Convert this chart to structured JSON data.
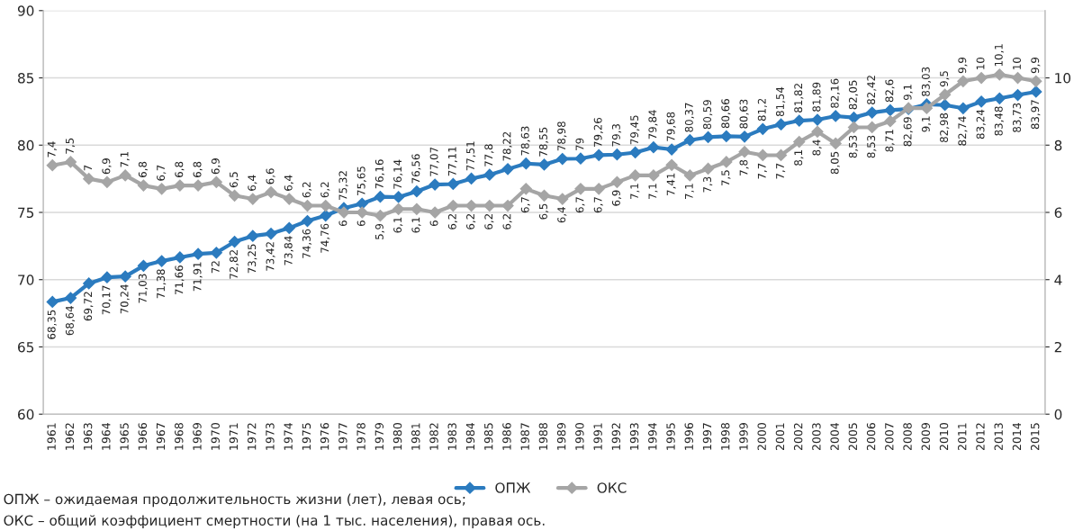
{
  "chart_data": {
    "type": "line",
    "categories": [
      "1961",
      "1962",
      "1963",
      "1964",
      "1965",
      "1966",
      "1967",
      "1968",
      "1969",
      "1970",
      "1971",
      "1972",
      "1973",
      "1974",
      "1975",
      "1976",
      "1977",
      "1978",
      "1979",
      "1980",
      "1981",
      "1982",
      "1983",
      "1984",
      "1985",
      "1986",
      "1987",
      "1988",
      "1989",
      "1990",
      "1991",
      "1992",
      "1993",
      "1994",
      "1995",
      "1996",
      "1997",
      "1998",
      "1999",
      "2000",
      "2001",
      "2002",
      "2003",
      "2004",
      "2005",
      "2006",
      "2007",
      "2008",
      "2009",
      "2010",
      "2011",
      "2012",
      "2013",
      "2014",
      "2015"
    ],
    "series": [
      {
        "name": "ОПЖ",
        "color": "#2b7bbf",
        "values": [
          68.35,
          68.64,
          69.72,
          70.17,
          70.24,
          71.03,
          71.38,
          71.66,
          71.91,
          72,
          72.82,
          73.25,
          73.42,
          73.84,
          74.36,
          74.76,
          75.32,
          75.65,
          76.16,
          76.14,
          76.56,
          77.07,
          77.11,
          77.51,
          77.8,
          78.22,
          78.63,
          78.55,
          78.98,
          79,
          79.26,
          79.3,
          79.45,
          79.84,
          79.68,
          80.37,
          80.59,
          80.66,
          80.63,
          81.2,
          81.54,
          81.82,
          81.89,
          82.16,
          82.05,
          82.42,
          82.6,
          82.69,
          83.03,
          82.98,
          82.74,
          83.24,
          83.48,
          83.73,
          83.97
        ],
        "value_labels": [
          "68,35",
          "68,64",
          "69,72",
          "70,17",
          "70,24",
          "71,03",
          "71,38",
          "71,66",
          "71,91",
          "72",
          "72,82",
          "73,25",
          "73,42",
          "73,84",
          "74,36",
          "74,76",
          "75,32",
          "75,65",
          "76,16",
          "76,14",
          "76,56",
          "77,07",
          "77,11",
          "77,51",
          "77,8",
          "78,22",
          "78,63",
          "78,55",
          "78,98",
          "79",
          "79,26",
          "79,3",
          "79,45",
          "79,84",
          "79,68",
          "80,37",
          "80,59",
          "80,66",
          "80,63",
          "81,2",
          "81,54",
          "81,82",
          "81,89",
          "82,16",
          "82,05",
          "82,42",
          "82,6",
          "82,69",
          "83,03",
          "82,98",
          "82,74",
          "83,24",
          "83,48",
          "83,73",
          "83,97"
        ]
      },
      {
        "name": "ОКС",
        "color": "#a5a5a5",
        "axis": "y2",
        "values": [
          7.4,
          7.5,
          7,
          6.9,
          7.1,
          6.8,
          6.7,
          6.8,
          6.8,
          6.9,
          6.5,
          6.4,
          6.6,
          6.4,
          6.2,
          6.2,
          6,
          6,
          5.9,
          6.1,
          6.1,
          6,
          6.2,
          6.2,
          6.2,
          6.2,
          6.7,
          6.5,
          6.4,
          6.7,
          6.7,
          6.9,
          7.1,
          7.1,
          7.41,
          7.1,
          7.3,
          7.5,
          7.8,
          7.7,
          7.7,
          8.1,
          8.4,
          8.05,
          8.53,
          8.53,
          8.71,
          9.1,
          9.1,
          9.5,
          9.9,
          10,
          10.1,
          10,
          9.9
        ],
        "value_labels": [
          "7,4",
          "7,5",
          "7",
          "6,9",
          "7,1",
          "6,8",
          "6,7",
          "6,8",
          "6,8",
          "6,9",
          "6,5",
          "6,4",
          "6,6",
          "6,4",
          "6,2",
          "6,2",
          "6",
          "6",
          "5,9",
          "6,1",
          "6,1",
          "6",
          "6,2",
          "6,2",
          "6,2",
          "6,2",
          "6,7",
          "6,5",
          "6,4",
          "6,7",
          "6,7",
          "6,9",
          "7,1",
          "7,1",
          "7,41",
          "7,1",
          "7,3",
          "7,5",
          "7,8",
          "7,7",
          "7,7",
          "8,1",
          "8,4",
          "8,05",
          "8,53",
          "8,53",
          "8,71",
          "9,1",
          "9,1",
          "9,5",
          "9,9",
          "10",
          "10,1",
          "10",
          "9,9"
        ]
      }
    ],
    "ylim": [
      60,
      90
    ],
    "yticks": [
      60,
      65,
      70,
      75,
      80,
      85,
      90
    ],
    "y2lim": [
      0,
      12
    ],
    "y2ticks": [
      0,
      2,
      4,
      6,
      8,
      10
    ],
    "grid": "y",
    "legend": "bottom",
    "marker": "diamond",
    "line_style": "solid",
    "annotations": [
      "ОПЖ – ожидаемая продолжительность жизни (лет), левая ось;",
      "ОКС – общий коэффициент смертности (на 1 тыс. населения), правая ось."
    ]
  }
}
